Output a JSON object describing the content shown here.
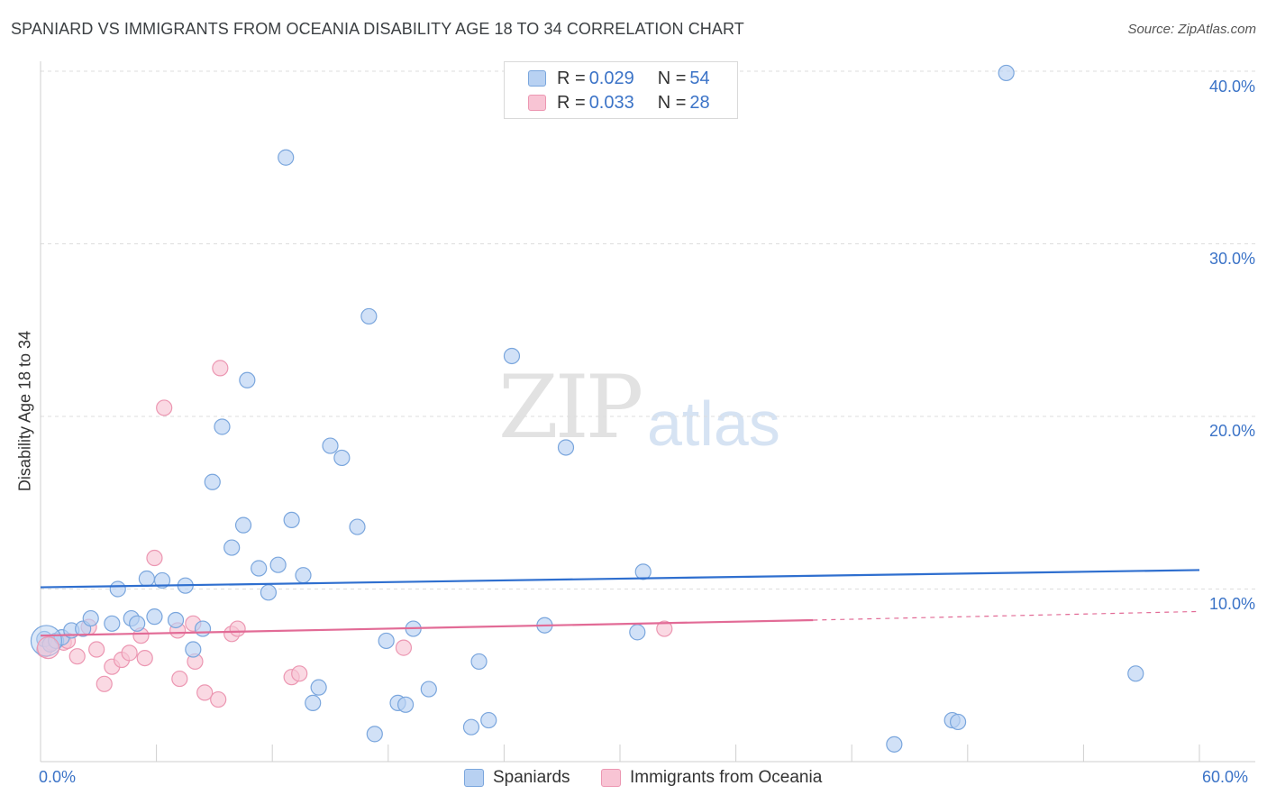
{
  "title": "SPANIARD VS IMMIGRANTS FROM OCEANIA DISABILITY AGE 18 TO 34 CORRELATION CHART",
  "source": "Source: ZipAtlas.com",
  "watermark": {
    "zip": "ZIP",
    "atlas": "atlas"
  },
  "legend_top": [
    {
      "r_label": "R = ",
      "r_value": "0.029",
      "n_label": "N = ",
      "n_value": "54"
    },
    {
      "r_label": "R = ",
      "r_value": "0.033",
      "n_label": "N = ",
      "n_value": "28"
    }
  ],
  "colors": {
    "blue_fill": "#b8d1f2",
    "blue_stroke": "#7aa6dd",
    "blue_line": "#2f6fcf",
    "pink_fill": "#f8c4d4",
    "pink_stroke": "#ec97b2",
    "pink_line": "#e26b96",
    "axis_label": "#3b73c7",
    "grid": "#dddddd"
  },
  "chart_data": {
    "type": "scatter",
    "title": "SPANIARD VS IMMIGRANTS FROM OCEANIA DISABILITY AGE 18 TO 34 CORRELATION CHART",
    "xlabel": "",
    "ylabel": "Disability Age 18 to 34",
    "xlim": [
      0,
      60
    ],
    "ylim": [
      0,
      41
    ],
    "x_tick_labels": [
      "0.0%",
      "60.0%"
    ],
    "y_ticks": [
      10,
      20,
      30,
      40
    ],
    "y_tick_labels": [
      "10.0%",
      "20.0%",
      "30.0%",
      "40.0%"
    ],
    "grid": true,
    "legend_position": "bottom",
    "series": [
      {
        "name": "Spaniards",
        "color": "#b8d1f2",
        "points": [
          [
            0.2,
            7.1
          ],
          [
            0.5,
            6.8
          ],
          [
            0.8,
            7.0
          ],
          [
            1.1,
            7.2
          ],
          [
            1.6,
            7.6
          ],
          [
            2.2,
            7.7
          ],
          [
            2.6,
            8.3
          ],
          [
            3.7,
            8.0
          ],
          [
            4.0,
            10.0
          ],
          [
            4.7,
            8.3
          ],
          [
            5.0,
            8.0
          ],
          [
            5.5,
            10.6
          ],
          [
            5.9,
            8.4
          ],
          [
            6.3,
            10.5
          ],
          [
            7.0,
            8.2
          ],
          [
            7.5,
            10.2
          ],
          [
            7.9,
            6.5
          ],
          [
            8.4,
            7.7
          ],
          [
            8.9,
            16.2
          ],
          [
            9.4,
            19.4
          ],
          [
            9.9,
            12.4
          ],
          [
            10.5,
            13.7
          ],
          [
            10.7,
            22.1
          ],
          [
            11.3,
            11.2
          ],
          [
            11.8,
            9.8
          ],
          [
            12.3,
            11.4
          ],
          [
            12.7,
            35.0
          ],
          [
            13.0,
            14.0
          ],
          [
            13.6,
            10.8
          ],
          [
            14.1,
            3.4
          ],
          [
            14.4,
            4.3
          ],
          [
            15.0,
            18.3
          ],
          [
            15.6,
            17.6
          ],
          [
            16.4,
            13.6
          ],
          [
            17.0,
            25.8
          ],
          [
            17.3,
            1.6
          ],
          [
            17.9,
            7.0
          ],
          [
            18.5,
            3.4
          ],
          [
            18.9,
            3.3
          ],
          [
            19.3,
            7.7
          ],
          [
            20.1,
            4.2
          ],
          [
            22.3,
            2.0
          ],
          [
            22.7,
            5.8
          ],
          [
            23.2,
            2.4
          ],
          [
            24.4,
            23.5
          ],
          [
            26.1,
            7.9
          ],
          [
            27.2,
            18.2
          ],
          [
            30.9,
            7.5
          ],
          [
            31.2,
            11.0
          ],
          [
            44.2,
            1.0
          ],
          [
            47.2,
            2.4
          ],
          [
            47.5,
            2.3
          ],
          [
            50.0,
            39.9
          ],
          [
            56.7,
            5.1
          ]
        ],
        "trend": {
          "x": [
            0,
            60
          ],
          "y": [
            10.1,
            11.1
          ]
        }
      },
      {
        "name": "Immigrants from Oceania",
        "color": "#f8c4d4",
        "points": [
          [
            0.2,
            6.5
          ],
          [
            0.6,
            6.9
          ],
          [
            1.2,
            6.9
          ],
          [
            1.4,
            7.0
          ],
          [
            1.9,
            6.1
          ],
          [
            2.5,
            7.8
          ],
          [
            2.9,
            6.5
          ],
          [
            3.3,
            4.5
          ],
          [
            3.7,
            5.5
          ],
          [
            4.2,
            5.9
          ],
          [
            4.6,
            6.3
          ],
          [
            5.2,
            7.3
          ],
          [
            5.4,
            6.0
          ],
          [
            5.9,
            11.8
          ],
          [
            6.4,
            20.5
          ],
          [
            7.2,
            4.8
          ],
          [
            7.1,
            7.6
          ],
          [
            7.9,
            8.0
          ],
          [
            8.0,
            5.8
          ],
          [
            8.5,
            4.0
          ],
          [
            9.2,
            3.6
          ],
          [
            9.3,
            22.8
          ],
          [
            9.9,
            7.4
          ],
          [
            10.2,
            7.7
          ],
          [
            13.0,
            4.9
          ],
          [
            13.4,
            5.1
          ],
          [
            18.8,
            6.6
          ],
          [
            32.3,
            7.7
          ]
        ],
        "trend": {
          "x": [
            0,
            40
          ],
          "y": [
            7.3,
            8.2
          ]
        },
        "trend_extension": {
          "x": [
            40,
            60
          ],
          "y": [
            8.2,
            8.7
          ]
        }
      }
    ]
  }
}
